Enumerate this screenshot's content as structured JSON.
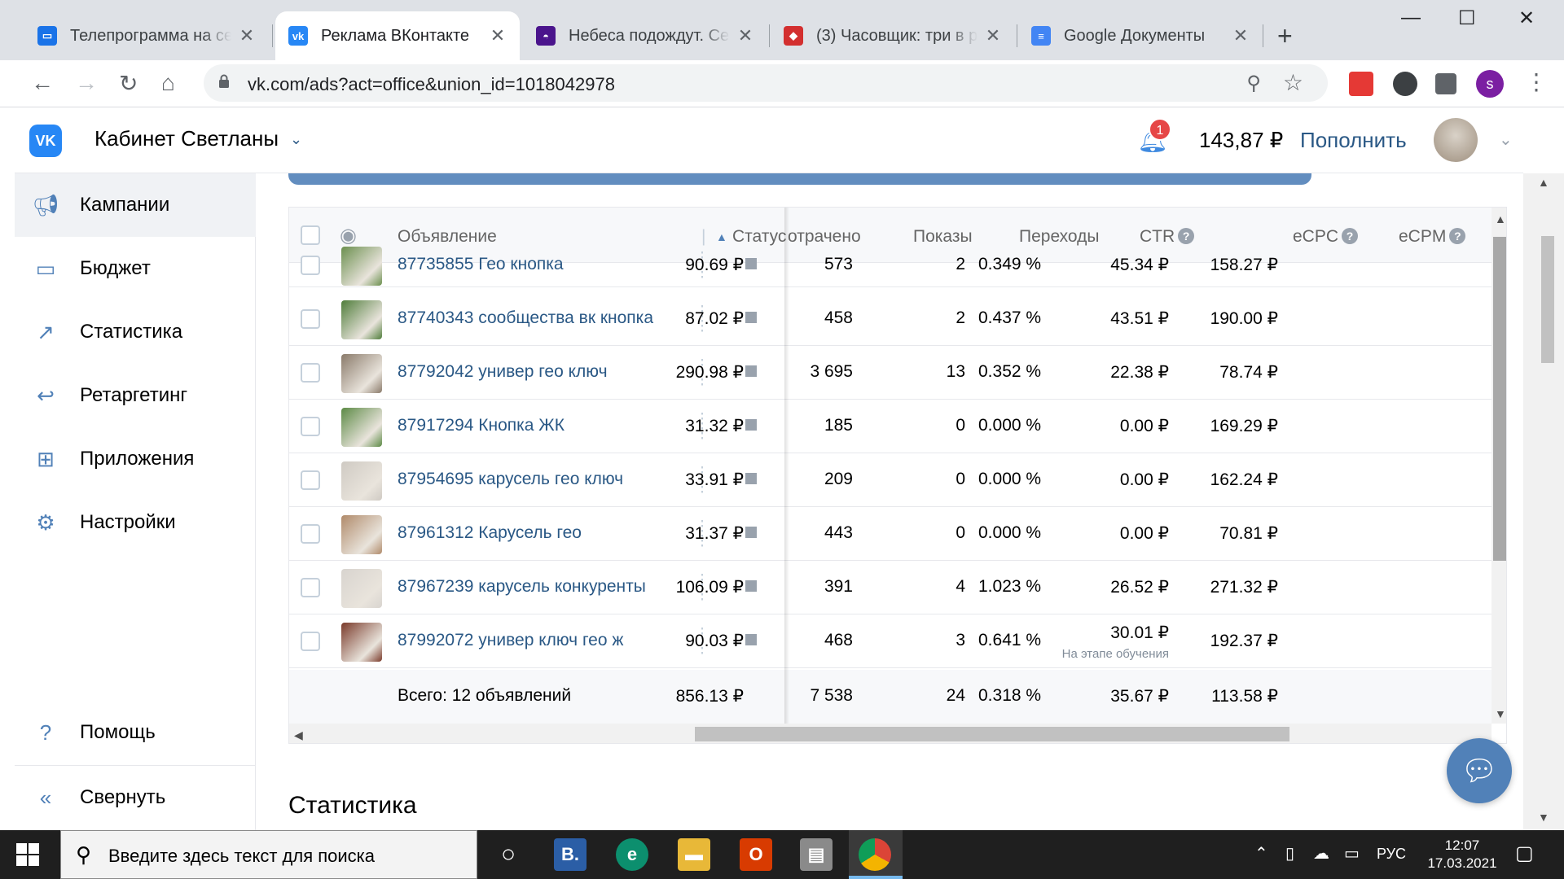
{
  "browser": {
    "tabs": [
      {
        "title": "Телепрограмма на сег",
        "favicon_color": "#1a73e8",
        "active": false
      },
      {
        "title": "Реклама ВКонтакте",
        "favicon_color": "#2787f5",
        "active": true
      },
      {
        "title": "Небеса подождут. Сер",
        "favicon_color": "#4a148c",
        "active": false
      },
      {
        "title": "(3) Часовщик: три в р",
        "favicon_color": "#d32f2f",
        "active": false
      },
      {
        "title": "Google Документы",
        "favicon_color": "#4285f4",
        "active": false
      }
    ],
    "url": "vk.com/ads?act=office&union_id=1018042978",
    "profile_letter": "s"
  },
  "header": {
    "logo": "VK",
    "cabinet_title": "Кабинет Светланы",
    "notifications_count": "1",
    "balance": "143,87 ₽",
    "topup_label": "Пополнить"
  },
  "sidebar": {
    "items": [
      {
        "label": "Кампании",
        "icon": "megaphone-icon"
      },
      {
        "label": "Бюджет",
        "icon": "wallet-icon"
      },
      {
        "label": "Статистика",
        "icon": "chart-icon"
      },
      {
        "label": "Ретаргетинг",
        "icon": "retarget-icon"
      },
      {
        "label": "Приложения",
        "icon": "apps-icon"
      },
      {
        "label": "Настройки",
        "icon": "gear-icon"
      }
    ],
    "help_label": "Помощь",
    "collapse_label": "Свернуть"
  },
  "table": {
    "columns": {
      "ad": "Объявление",
      "status": "Статус",
      "spent": "отрачено",
      "impressions": "Показы",
      "clicks": "Переходы",
      "ctr": "CTR",
      "ecpc": "eCPC",
      "ecpm": "eCPM"
    },
    "rows": [
      {
        "name": "87735855 Гео кнопка",
        "spent": "90.69 ₽",
        "impressions": "573",
        "clicks": "2",
        "ctr": "0.349 %",
        "ecpc": "45.34 ₽",
        "ecpm": "158.27 ₽",
        "thumb": "#6b8f4e"
      },
      {
        "name": "87740343 сообщества вк кнопка",
        "spent": "87.02 ₽",
        "impressions": "458",
        "clicks": "2",
        "ctr": "0.437 %",
        "ecpc": "43.51 ₽",
        "ecpm": "190.00 ₽",
        "thumb": "#4f7d3a"
      },
      {
        "name": "87792042 универ гео ключ",
        "spent": "290.98 ₽",
        "impressions": "3 695",
        "clicks": "13",
        "ctr": "0.352 %",
        "ecpc": "22.38 ₽",
        "ecpm": "78.74 ₽",
        "thumb": "#8a7a6a"
      },
      {
        "name": "87917294 Кнопка ЖК",
        "spent": "31.32 ₽",
        "impressions": "185",
        "clicks": "0",
        "ctr": "0.000 %",
        "ecpc": "0.00 ₽",
        "ecpm": "169.29 ₽",
        "thumb": "#5c8a45"
      },
      {
        "name": "87954695 карусель гео ключ",
        "spent": "33.91 ₽",
        "impressions": "209",
        "clicks": "0",
        "ctr": "0.000 %",
        "ecpc": "0.00 ₽",
        "ecpm": "162.24 ₽",
        "thumb": "#cfcac3"
      },
      {
        "name": "87961312 Карусель гео",
        "spent": "31.37 ₽",
        "impressions": "443",
        "clicks": "0",
        "ctr": "0.000 %",
        "ecpc": "0.00 ₽",
        "ecpm": "70.81 ₽",
        "thumb": "#b08a6a"
      },
      {
        "name": "87967239 карусель конкуренты",
        "spent": "106.09 ₽",
        "impressions": "391",
        "clicks": "4",
        "ctr": "1.023 %",
        "ecpc": "26.52 ₽",
        "ecpm": "271.32 ₽",
        "thumb": "#d8d4cf"
      },
      {
        "name": "87992072 универ ключ гео ж",
        "spent": "90.03 ₽",
        "impressions": "468",
        "clicks": "3",
        "ctr": "0.641 %",
        "ecpc": "30.01 ₽",
        "ecpc_note": "На этапе обучения",
        "ecpm": "192.37 ₽",
        "thumb": "#7a3a2a"
      }
    ],
    "total": {
      "label": "Всего: 12 объявлений",
      "spent": "856.13 ₽",
      "impressions": "7 538",
      "clicks": "24",
      "ctr": "0.318 %",
      "ecpc": "35.67 ₽",
      "ecpm": "113.58 ₽"
    }
  },
  "statistics_title": "Статистика",
  "taskbar": {
    "search_placeholder": "Введите здесь текст для поиска",
    "language": "РУС",
    "time": "12:07",
    "date": "17.03.2021"
  }
}
